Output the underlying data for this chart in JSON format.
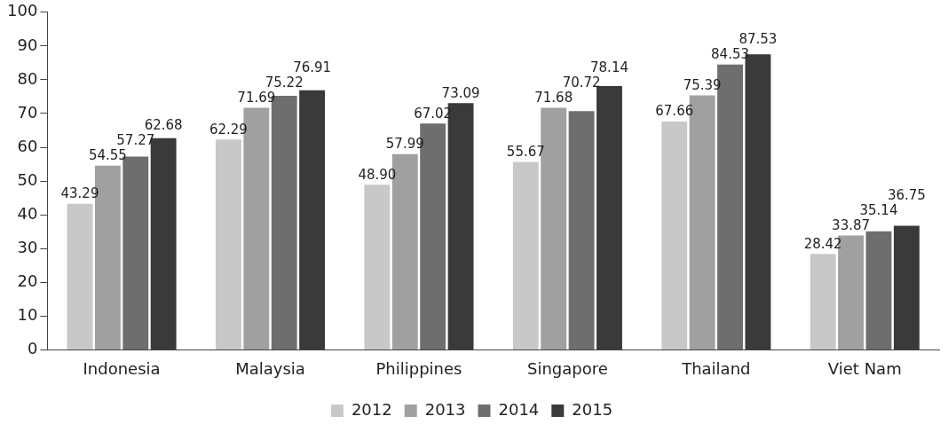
{
  "chart_data": {
    "type": "bar",
    "categories": [
      "Indonesia",
      "Malaysia",
      "Philippines",
      "Singapore",
      "Thailand",
      "Viet Nam"
    ],
    "series": [
      {
        "name": "2012",
        "color": "#c8c8c8",
        "values": [
          43.29,
          62.29,
          48.9,
          55.67,
          67.66,
          28.42
        ],
        "value_labels": [
          "43.29",
          "62.29",
          "48.90",
          "55.67",
          "67.66",
          "28.42"
        ]
      },
      {
        "name": "2013",
        "color": "#a0a0a0",
        "values": [
          54.55,
          71.69,
          57.99,
          71.68,
          75.39,
          33.87
        ],
        "value_labels": [
          "54.55",
          "71.69",
          "57.99",
          "71.68",
          "75.39",
          "33.87"
        ]
      },
      {
        "name": "2014",
        "color": "#6e6e6e",
        "values": [
          57.27,
          75.22,
          67.02,
          70.72,
          84.53,
          35.14
        ],
        "value_labels": [
          "57.27",
          "75.22",
          "67.02",
          "70.72",
          "84.53",
          "35.14"
        ]
      },
      {
        "name": "2015",
        "color": "#3a3a3a",
        "values": [
          62.68,
          76.91,
          73.09,
          78.14,
          87.53,
          36.75
        ],
        "value_labels": [
          "62.68",
          "76.91",
          "73.09",
          "78.14",
          "87.53",
          "36.75"
        ]
      }
    ],
    "ylim": [
      0,
      100
    ],
    "yticks": [
      0,
      10,
      20,
      30,
      40,
      50,
      60,
      70,
      80,
      90,
      100
    ],
    "grid": false,
    "legend": "bottom"
  }
}
